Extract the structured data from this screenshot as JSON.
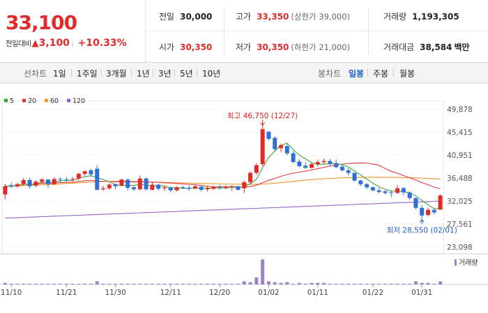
{
  "quote": {
    "price": "33,100",
    "change_label": "전일대비",
    "change_symbol": "▲",
    "change": "3,100",
    "change_pct": "+10.33%",
    "prev_close_label": "전일",
    "prev_close": "30,000",
    "high_label": "고가",
    "high": "33,350",
    "upper_limit": "(상한가 39,000)",
    "volume_label": "거래량",
    "volume": "1,193,305",
    "open_label": "시가",
    "open": "30,350",
    "low_label": "저가",
    "low": "30,350",
    "lower_limit": "(하한가 21,000)",
    "amount_label": "거래대금",
    "amount": "38,584",
    "amount_unit": "백만"
  },
  "toolbar": {
    "line_label": "선차트",
    "periods": [
      "1일",
      "1주일",
      "3개월",
      "1년",
      "3년",
      "5년",
      "10년"
    ],
    "candle_label": "봉차트",
    "candle_types": [
      "일봉",
      "주봉",
      "월봉"
    ],
    "candle_selected": "일봉"
  },
  "colors": {
    "up": "#e12a2a",
    "down": "#2f6fd6",
    "ma5": "#3fa535",
    "ma20": "#e5383b",
    "ma60": "#f0962a",
    "ma120": "#9561c7",
    "volume": "#9b82c9"
  },
  "chart_data": {
    "type": "candlestick",
    "legend": [
      "5",
      "20",
      "60",
      "120"
    ],
    "y_ticks": [
      "49,878",
      "45,415",
      "40,951",
      "36,488",
      "32,025",
      "27,561",
      "23,098"
    ],
    "y_range": [
      23098,
      49878
    ],
    "x_ticks": [
      "11/10",
      "11/21",
      "11/30",
      "12/11",
      "12/20",
      "01/02",
      "01/11",
      "01/22",
      "01/31"
    ],
    "high_annotation": "최고 46,750 (12/27)",
    "low_annotation": "최저 28,550 (02/01)",
    "volume_label": "거래량",
    "candles": [
      [
        33300,
        34900,
        32300,
        35400
      ],
      [
        35100,
        34900,
        34500,
        35600
      ],
      [
        34900,
        35300,
        34600,
        35600
      ],
      [
        35300,
        36100,
        35000,
        36500
      ],
      [
        36100,
        34900,
        34500,
        36600
      ],
      [
        35000,
        35800,
        34700,
        36100
      ],
      [
        35800,
        36200,
        35400,
        36500
      ],
      [
        36200,
        35300,
        34600,
        36300
      ],
      [
        35300,
        36300,
        35100,
        36600
      ],
      [
        36300,
        36200,
        35700,
        36600
      ],
      [
        36200,
        36100,
        35600,
        36700
      ],
      [
        36200,
        36300,
        35800,
        36700
      ],
      [
        36400,
        37300,
        36000,
        37600
      ],
      [
        37300,
        37800,
        36900,
        38000
      ],
      [
        38000,
        37200,
        36800,
        38300
      ],
      [
        38300,
        34200,
        34100,
        39000
      ],
      [
        34300,
        34500,
        34000,
        35000
      ],
      [
        34500,
        35200,
        34200,
        35500
      ],
      [
        35300,
        34900,
        34300,
        35400
      ],
      [
        35000,
        36200,
        34900,
        36400
      ],
      [
        36200,
        34600,
        34100,
        36400
      ],
      [
        34700,
        34300,
        34000,
        34900
      ],
      [
        34300,
        36400,
        34100,
        37000
      ],
      [
        36400,
        34300,
        34000,
        36600
      ],
      [
        34200,
        35200,
        34100,
        35700
      ],
      [
        35200,
        34400,
        34100,
        35400
      ],
      [
        34500,
        34700,
        34000,
        35000
      ],
      [
        34700,
        34100,
        33700,
        34800
      ],
      [
        34100,
        34700,
        33900,
        34900
      ],
      [
        34700,
        34600,
        34300,
        35000
      ],
      [
        34600,
        34400,
        34000,
        35100
      ],
      [
        34500,
        34900,
        34200,
        35200
      ],
      [
        34800,
        34200,
        33900,
        35000
      ],
      [
        34300,
        34500,
        33900,
        35000
      ],
      [
        34400,
        34800,
        34200,
        35000
      ],
      [
        34800,
        34600,
        34200,
        35200
      ],
      [
        34600,
        34700,
        34300,
        35100
      ],
      [
        34800,
        34900,
        34000,
        35100
      ],
      [
        34900,
        34200,
        34100,
        35000
      ],
      [
        34500,
        35700,
        33600,
        36000
      ],
      [
        35700,
        37500,
        35400,
        37800
      ],
      [
        37500,
        39000,
        37100,
        39400
      ],
      [
        39200,
        46000,
        38800,
        46750
      ],
      [
        45500,
        44100,
        43800,
        45600
      ],
      [
        44300,
        42100,
        41700,
        44600
      ],
      [
        42300,
        42900,
        41500,
        43200
      ],
      [
        42700,
        41300,
        40900,
        43100
      ],
      [
        41300,
        39600,
        39400,
        41700
      ],
      [
        39700,
        38800,
        38600,
        40200
      ],
      [
        38900,
        38500,
        38200,
        39600
      ],
      [
        38500,
        39200,
        38300,
        39500
      ],
      [
        39200,
        39600,
        38800,
        40100
      ],
      [
        39600,
        39800,
        39200,
        40300
      ],
      [
        39800,
        39300,
        38800,
        40200
      ],
      [
        39400,
        38600,
        38400,
        40100
      ],
      [
        38700,
        38000,
        37700,
        39100
      ],
      [
        38000,
        37500,
        37000,
        38400
      ],
      [
        37500,
        36000,
        35800,
        37600
      ],
      [
        36000,
        35300,
        34900,
        36200
      ],
      [
        35300,
        34700,
        34300,
        35500
      ],
      [
        34700,
        34100,
        33900,
        34900
      ],
      [
        34100,
        33800,
        33500,
        34600
      ],
      [
        33900,
        33600,
        33300,
        34100
      ],
      [
        33700,
        33600,
        32800,
        34000
      ],
      [
        33600,
        34500,
        33400,
        35100
      ],
      [
        34500,
        33700,
        33100,
        34800
      ],
      [
        33700,
        32600,
        32200,
        33900
      ],
      [
        32600,
        30700,
        30400,
        32700
      ],
      [
        30700,
        29200,
        28550,
        31200
      ],
      [
        29300,
        30300,
        29000,
        30700
      ],
      [
        30300,
        29800,
        29400,
        30600
      ],
      [
        30350,
        33100,
        30350,
        33350
      ]
    ],
    "volume": [
      2,
      1,
      1,
      1,
      1,
      1,
      1,
      1,
      1,
      1,
      1,
      1,
      1,
      1,
      1,
      4,
      1,
      1,
      1,
      1,
      1,
      1,
      1,
      1,
      1,
      1,
      1,
      1,
      1,
      1,
      1,
      1,
      1,
      1,
      1,
      1,
      1,
      1,
      1,
      4,
      3,
      9,
      32,
      4,
      3,
      2,
      3,
      1,
      2,
      1,
      2,
      2,
      2,
      1,
      1,
      1,
      1,
      1,
      1,
      1,
      1,
      1,
      1,
      1,
      1,
      1,
      1,
      4,
      2,
      2,
      1,
      4
    ],
    "vol_max": 32
  }
}
